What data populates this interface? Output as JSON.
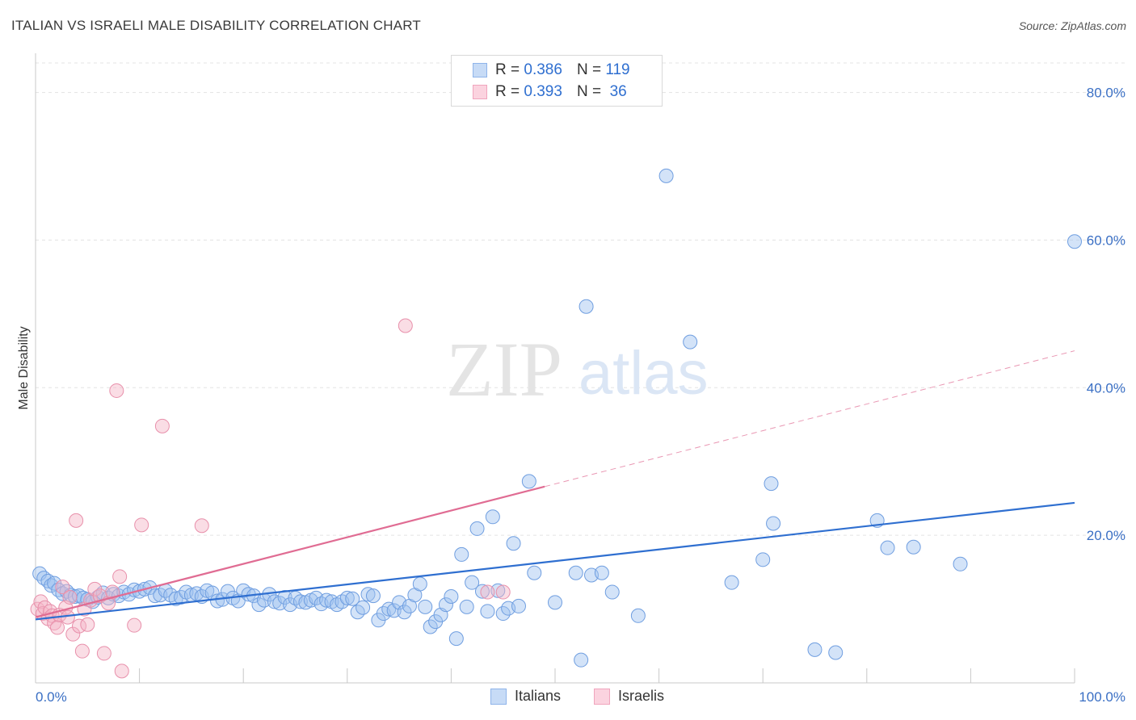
{
  "title": "ITALIAN VS ISRAELI MALE DISABILITY CORRELATION CHART",
  "source": "Source: ZipAtlas.com",
  "watermark": {
    "zip": "ZIP",
    "atlas": "atlas"
  },
  "legend": {
    "rows": [
      {
        "r_label": "R = ",
        "r_value": "0.386",
        "n_label": "N = ",
        "n_value": "119",
        "color": "#9ec1ef"
      },
      {
        "r_label": "R = ",
        "r_value": "0.393",
        "n_label": "N = ",
        "n_value": " 36",
        "color": "#f4b3c6"
      }
    ]
  },
  "bottom_legend": {
    "italians": "Italians",
    "israelis": "Israelis"
  },
  "chart_data": {
    "type": "scatter",
    "title": "ITALIAN VS ISRAELI MALE DISABILITY CORRELATION CHART",
    "xlabel": "",
    "ylabel": "Male Disability",
    "xlim": [
      0,
      100
    ],
    "ylim": [
      0,
      84
    ],
    "x_tick_labels": [
      "0.0%",
      "100.0%"
    ],
    "y_ticks": [
      20,
      40,
      60,
      80
    ],
    "y_tick_labels": [
      "20.0%",
      "40.0%",
      "60.0%",
      "80.0%"
    ],
    "grid": true,
    "legend_placement": "top-center",
    "series": [
      {
        "name": "Italians",
        "color": "#9ec1ef",
        "stroke": "#6f9ee0",
        "trend": {
          "x": [
            0,
            100
          ],
          "y": [
            8.6,
            24.4
          ],
          "color": "#2f6fd0",
          "dashed_extension": false
        },
        "points": [
          [
            0.4,
            14.8
          ],
          [
            0.8,
            14.2
          ],
          [
            1.2,
            13.8
          ],
          [
            1.5,
            13.2
          ],
          [
            1.8,
            13.5
          ],
          [
            2.2,
            12.6
          ],
          [
            2.6,
            12.1
          ],
          [
            3.0,
            12.4
          ],
          [
            3.4,
            11.9
          ],
          [
            3.8,
            11.7
          ],
          [
            4.2,
            11.8
          ],
          [
            4.6,
            11.5
          ],
          [
            5.0,
            11.3
          ],
          [
            5.5,
            11.0
          ],
          [
            6.0,
            11.6
          ],
          [
            6.5,
            12.2
          ],
          [
            7.0,
            11.5
          ],
          [
            7.5,
            12.0
          ],
          [
            8.0,
            11.8
          ],
          [
            8.5,
            12.3
          ],
          [
            9.0,
            12.0
          ],
          [
            9.5,
            12.6
          ],
          [
            10.0,
            12.4
          ],
          [
            10.5,
            12.7
          ],
          [
            11.0,
            12.9
          ],
          [
            11.5,
            11.8
          ],
          [
            12.0,
            11.9
          ],
          [
            12.5,
            12.5
          ],
          [
            13.0,
            11.9
          ],
          [
            13.5,
            11.4
          ],
          [
            14.0,
            11.6
          ],
          [
            14.5,
            12.3
          ],
          [
            15.0,
            11.9
          ],
          [
            15.5,
            12.1
          ],
          [
            16.0,
            11.7
          ],
          [
            16.5,
            12.5
          ],
          [
            17.0,
            12.2
          ],
          [
            17.5,
            11.1
          ],
          [
            18.0,
            11.3
          ],
          [
            18.5,
            12.4
          ],
          [
            19.0,
            11.5
          ],
          [
            19.5,
            11.1
          ],
          [
            20.0,
            12.5
          ],
          [
            20.5,
            12.0
          ],
          [
            21.0,
            11.8
          ],
          [
            21.5,
            10.6
          ],
          [
            22.0,
            11.2
          ],
          [
            22.5,
            12.0
          ],
          [
            23.0,
            11.0
          ],
          [
            23.5,
            10.8
          ],
          [
            24.0,
            11.6
          ],
          [
            24.5,
            10.6
          ],
          [
            25.0,
            11.5
          ],
          [
            25.5,
            11.0
          ],
          [
            26.0,
            10.9
          ],
          [
            26.5,
            11.2
          ],
          [
            27.0,
            11.5
          ],
          [
            27.5,
            10.7
          ],
          [
            28.0,
            11.2
          ],
          [
            28.5,
            11.0
          ],
          [
            29.0,
            10.6
          ],
          [
            29.5,
            11.0
          ],
          [
            30.0,
            11.5
          ],
          [
            30.5,
            11.4
          ],
          [
            31.0,
            9.6
          ],
          [
            31.5,
            10.2
          ],
          [
            32.0,
            12.0
          ],
          [
            32.5,
            11.8
          ],
          [
            33.0,
            8.5
          ],
          [
            33.5,
            9.4
          ],
          [
            34.0,
            10.0
          ],
          [
            34.5,
            9.8
          ],
          [
            35.0,
            10.9
          ],
          [
            35.5,
            9.6
          ],
          [
            36.0,
            10.4
          ],
          [
            36.5,
            11.9
          ],
          [
            37.0,
            13.4
          ],
          [
            37.5,
            10.3
          ],
          [
            38.0,
            7.6
          ],
          [
            38.5,
            8.3
          ],
          [
            39.0,
            9.2
          ],
          [
            39.5,
            10.6
          ],
          [
            40.0,
            11.7
          ],
          [
            40.5,
            6.0
          ],
          [
            41.0,
            17.4
          ],
          [
            41.5,
            10.3
          ],
          [
            42.0,
            13.6
          ],
          [
            42.5,
            20.9
          ],
          [
            43.0,
            12.4
          ],
          [
            43.5,
            9.7
          ],
          [
            44.0,
            22.5
          ],
          [
            44.5,
            12.5
          ],
          [
            45.0,
            9.4
          ],
          [
            45.5,
            10.1
          ],
          [
            46.0,
            18.9
          ],
          [
            46.5,
            10.4
          ],
          [
            47.5,
            27.3
          ],
          [
            48.0,
            14.9
          ],
          [
            50.0,
            10.9
          ],
          [
            52.0,
            14.9
          ],
          [
            52.5,
            3.1
          ],
          [
            53.0,
            51.0
          ],
          [
            53.5,
            14.6
          ],
          [
            54.5,
            14.9
          ],
          [
            55.5,
            12.3
          ],
          [
            58.0,
            9.1
          ],
          [
            60.7,
            68.7
          ],
          [
            63.0,
            46.2
          ],
          [
            67.0,
            13.6
          ],
          [
            70.0,
            16.7
          ],
          [
            70.8,
            27.0
          ],
          [
            71.0,
            21.6
          ],
          [
            75.0,
            4.5
          ],
          [
            77.0,
            4.1
          ],
          [
            81.0,
            22.0
          ],
          [
            82.0,
            18.3
          ],
          [
            84.5,
            18.4
          ],
          [
            89.0,
            16.1
          ],
          [
            100.0,
            59.8
          ]
        ]
      },
      {
        "name": "Israelis",
        "color": "#f4b3c6",
        "stroke": "#e890ab",
        "trend": {
          "x": [
            0,
            49
          ],
          "y": [
            8.9,
            26.6
          ],
          "color": "#e06c93",
          "dashed_to": [
            100,
            45.0
          ]
        },
        "points": [
          [
            0.2,
            10.0
          ],
          [
            0.5,
            11.0
          ],
          [
            0.7,
            9.4
          ],
          [
            0.9,
            10.2
          ],
          [
            1.2,
            8.7
          ],
          [
            1.4,
            9.7
          ],
          [
            1.6,
            9.1
          ],
          [
            1.8,
            8.1
          ],
          [
            2.1,
            7.5
          ],
          [
            2.3,
            9.2
          ],
          [
            2.6,
            13.0
          ],
          [
            2.9,
            10.2
          ],
          [
            3.1,
            8.9
          ],
          [
            3.3,
            11.6
          ],
          [
            3.6,
            6.6
          ],
          [
            3.9,
            22.0
          ],
          [
            4.2,
            7.7
          ],
          [
            4.5,
            4.3
          ],
          [
            4.7,
            10.0
          ],
          [
            5.0,
            7.9
          ],
          [
            5.3,
            11.2
          ],
          [
            5.7,
            12.7
          ],
          [
            6.2,
            11.8
          ],
          [
            6.6,
            4.0
          ],
          [
            7.0,
            10.8
          ],
          [
            7.4,
            12.3
          ],
          [
            7.8,
            39.6
          ],
          [
            8.1,
            14.4
          ],
          [
            8.3,
            1.6
          ],
          [
            9.5,
            7.8
          ],
          [
            10.2,
            21.4
          ],
          [
            12.2,
            34.8
          ],
          [
            16.0,
            21.3
          ],
          [
            35.6,
            48.4
          ],
          [
            43.5,
            12.3
          ],
          [
            45.0,
            12.3
          ]
        ]
      }
    ]
  }
}
